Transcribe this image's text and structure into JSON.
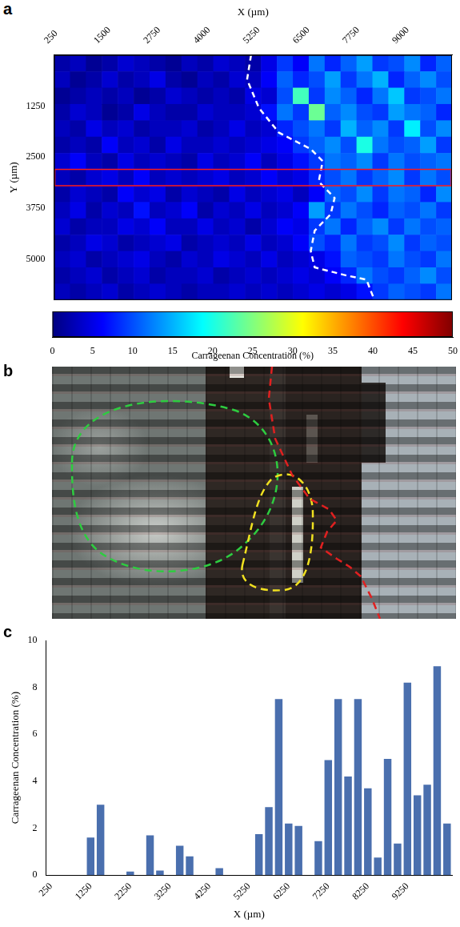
{
  "chart_data": [
    {
      "panel": "a",
      "type": "heatmap",
      "x_label": "X (µm)",
      "y_label": "Y (µm)",
      "x": [
        450,
        850,
        1250,
        1650,
        2050,
        2450,
        2850,
        3250,
        3650,
        4050,
        4450,
        4850,
        5250,
        5650,
        6050,
        6450,
        6850,
        7250,
        7650,
        8050,
        8450,
        8850,
        9250,
        9650,
        10050
      ],
      "y": [
        200,
        600,
        1000,
        1400,
        1800,
        2200,
        2600,
        3000,
        3400,
        3800,
        4200,
        4600,
        5000,
        5400,
        5800
      ],
      "cells": [
        [
          2,
          3,
          1,
          2,
          4,
          3,
          2,
          1,
          3,
          2,
          4,
          3,
          2,
          5,
          9,
          6,
          12,
          8,
          11,
          14,
          9,
          10,
          13,
          8,
          11
        ],
        [
          3,
          1,
          2,
          4,
          2,
          3,
          5,
          2,
          1,
          3,
          2,
          4,
          3,
          6,
          11,
          8,
          10,
          14,
          9,
          12,
          15,
          8,
          11,
          13,
          10
        ],
        [
          1,
          2,
          3,
          2,
          3,
          1,
          2,
          4,
          3,
          2,
          3,
          2,
          5,
          4,
          10,
          22,
          9,
          13,
          11,
          8,
          12,
          16,
          9,
          10,
          12
        ],
        [
          2,
          4,
          3,
          1,
          2,
          5,
          3,
          2,
          2,
          4,
          3,
          3,
          4,
          7,
          12,
          9,
          24,
          11,
          13,
          10,
          9,
          14,
          12,
          11,
          8
        ],
        [
          3,
          2,
          5,
          3,
          4,
          2,
          3,
          3,
          4,
          2,
          3,
          5,
          3,
          4,
          8,
          10,
          12,
          9,
          15,
          11,
          13,
          9,
          18,
          10,
          13
        ],
        [
          2,
          3,
          2,
          6,
          3,
          4,
          2,
          5,
          3,
          3,
          4,
          3,
          4,
          5,
          6,
          9,
          11,
          13,
          10,
          20,
          12,
          10,
          11,
          14,
          9
        ],
        [
          4,
          6,
          3,
          2,
          5,
          3,
          4,
          3,
          2,
          5,
          3,
          4,
          6,
          3,
          5,
          7,
          9,
          12,
          11,
          13,
          9,
          12,
          10,
          11,
          12
        ],
        [
          3,
          2,
          4,
          5,
          3,
          6,
          3,
          4,
          3,
          4,
          5,
          3,
          4,
          6,
          4,
          5,
          8,
          10,
          12,
          9,
          11,
          13,
          9,
          12,
          10
        ],
        [
          2,
          4,
          3,
          2,
          6,
          4,
          5,
          2,
          4,
          3,
          2,
          5,
          3,
          4,
          5,
          3,
          6,
          11,
          10,
          13,
          9,
          12,
          11,
          8,
          13
        ],
        [
          3,
          5,
          2,
          4,
          3,
          7,
          3,
          4,
          6,
          2,
          4,
          3,
          5,
          3,
          4,
          6,
          14,
          9,
          12,
          10,
          8,
          11,
          10,
          12,
          9
        ],
        [
          4,
          2,
          3,
          3,
          5,
          4,
          6,
          3,
          3,
          5,
          3,
          4,
          2,
          4,
          6,
          5,
          9,
          12,
          8,
          11,
          13,
          9,
          12,
          10,
          11
        ],
        [
          2,
          3,
          5,
          4,
          2,
          3,
          4,
          5,
          2,
          3,
          4,
          3,
          5,
          3,
          4,
          6,
          10,
          8,
          12,
          9,
          10,
          13,
          9,
          11,
          10
        ],
        [
          3,
          4,
          2,
          3,
          4,
          5,
          3,
          2,
          4,
          3,
          5,
          4,
          3,
          5,
          3,
          4,
          5,
          7,
          11,
          10,
          9,
          12,
          10,
          9,
          12
        ],
        [
          2,
          3,
          4,
          2,
          3,
          4,
          2,
          3,
          3,
          4,
          2,
          3,
          4,
          3,
          4,
          5,
          4,
          6,
          8,
          12,
          10,
          9,
          11,
          13,
          10
        ],
        [
          3,
          2,
          3,
          4,
          2,
          3,
          4,
          3,
          2,
          3,
          3,
          4,
          3,
          4,
          3,
          4,
          5,
          4,
          5,
          7,
          9,
          11,
          10,
          9,
          12
        ]
      ],
      "xlim": [
        250,
        10250
      ],
      "xticks": [
        250,
        1500,
        2750,
        4000,
        5250,
        6500,
        7750,
        9000
      ],
      "ylim": [
        0,
        6000
      ],
      "yticks": [
        1250,
        2500,
        3750,
        5000
      ],
      "grid": false,
      "colorbar": {
        "label": "Carrageenan Concentration (%)",
        "range": [
          0,
          50
        ],
        "ticks": [
          0,
          5,
          10,
          15,
          20,
          25,
          30,
          35,
          40,
          45,
          50
        ]
      },
      "boundary": [
        [
          5200,
          0
        ],
        [
          5100,
          600
        ],
        [
          5400,
          1300
        ],
        [
          5900,
          1900
        ],
        [
          6700,
          2300
        ],
        [
          7000,
          2600
        ],
        [
          6900,
          3100
        ],
        [
          7300,
          3500
        ],
        [
          7200,
          3900
        ],
        [
          6800,
          4300
        ],
        [
          6700,
          4800
        ],
        [
          6800,
          5200
        ],
        [
          7600,
          5400
        ],
        [
          8100,
          5500
        ],
        [
          8300,
          6000
        ]
      ],
      "highlight": [
        2800,
        3200
      ]
    },
    {
      "panel": "c",
      "type": "bar",
      "x_label": "X (µm)",
      "y_label": "Carrageenan Concentration (%)",
      "categories": [
        250,
        null,
        null,
        null,
        1250,
        null,
        null,
        null,
        2250,
        null,
        null,
        null,
        3250,
        null,
        null,
        null,
        4250,
        null,
        null,
        null,
        5250,
        null,
        null,
        null,
        6250,
        null,
        null,
        null,
        7250,
        null,
        null,
        null,
        8250,
        null,
        null,
        null,
        9250,
        null,
        null,
        null,
        null
      ],
      "values": [
        0,
        0,
        0,
        0,
        1.6,
        3.0,
        0,
        0,
        0.15,
        0,
        1.7,
        0.2,
        0,
        1.25,
        0.8,
        0,
        0,
        0.3,
        0,
        0,
        0,
        1.75,
        2.9,
        7.5,
        2.2,
        2.1,
        0,
        1.45,
        4.9,
        7.5,
        4.2,
        7.5,
        3.7,
        0.75,
        4.95,
        1.35,
        8.2,
        3.4,
        3.85,
        8.9,
        2.2
      ],
      "color": "#4a6fae",
      "ylim": [
        0,
        10
      ],
      "yticks": [
        0,
        2,
        4,
        6,
        8,
        10
      ],
      "grid": false
    }
  ],
  "image": {
    "panel": "b"
  }
}
